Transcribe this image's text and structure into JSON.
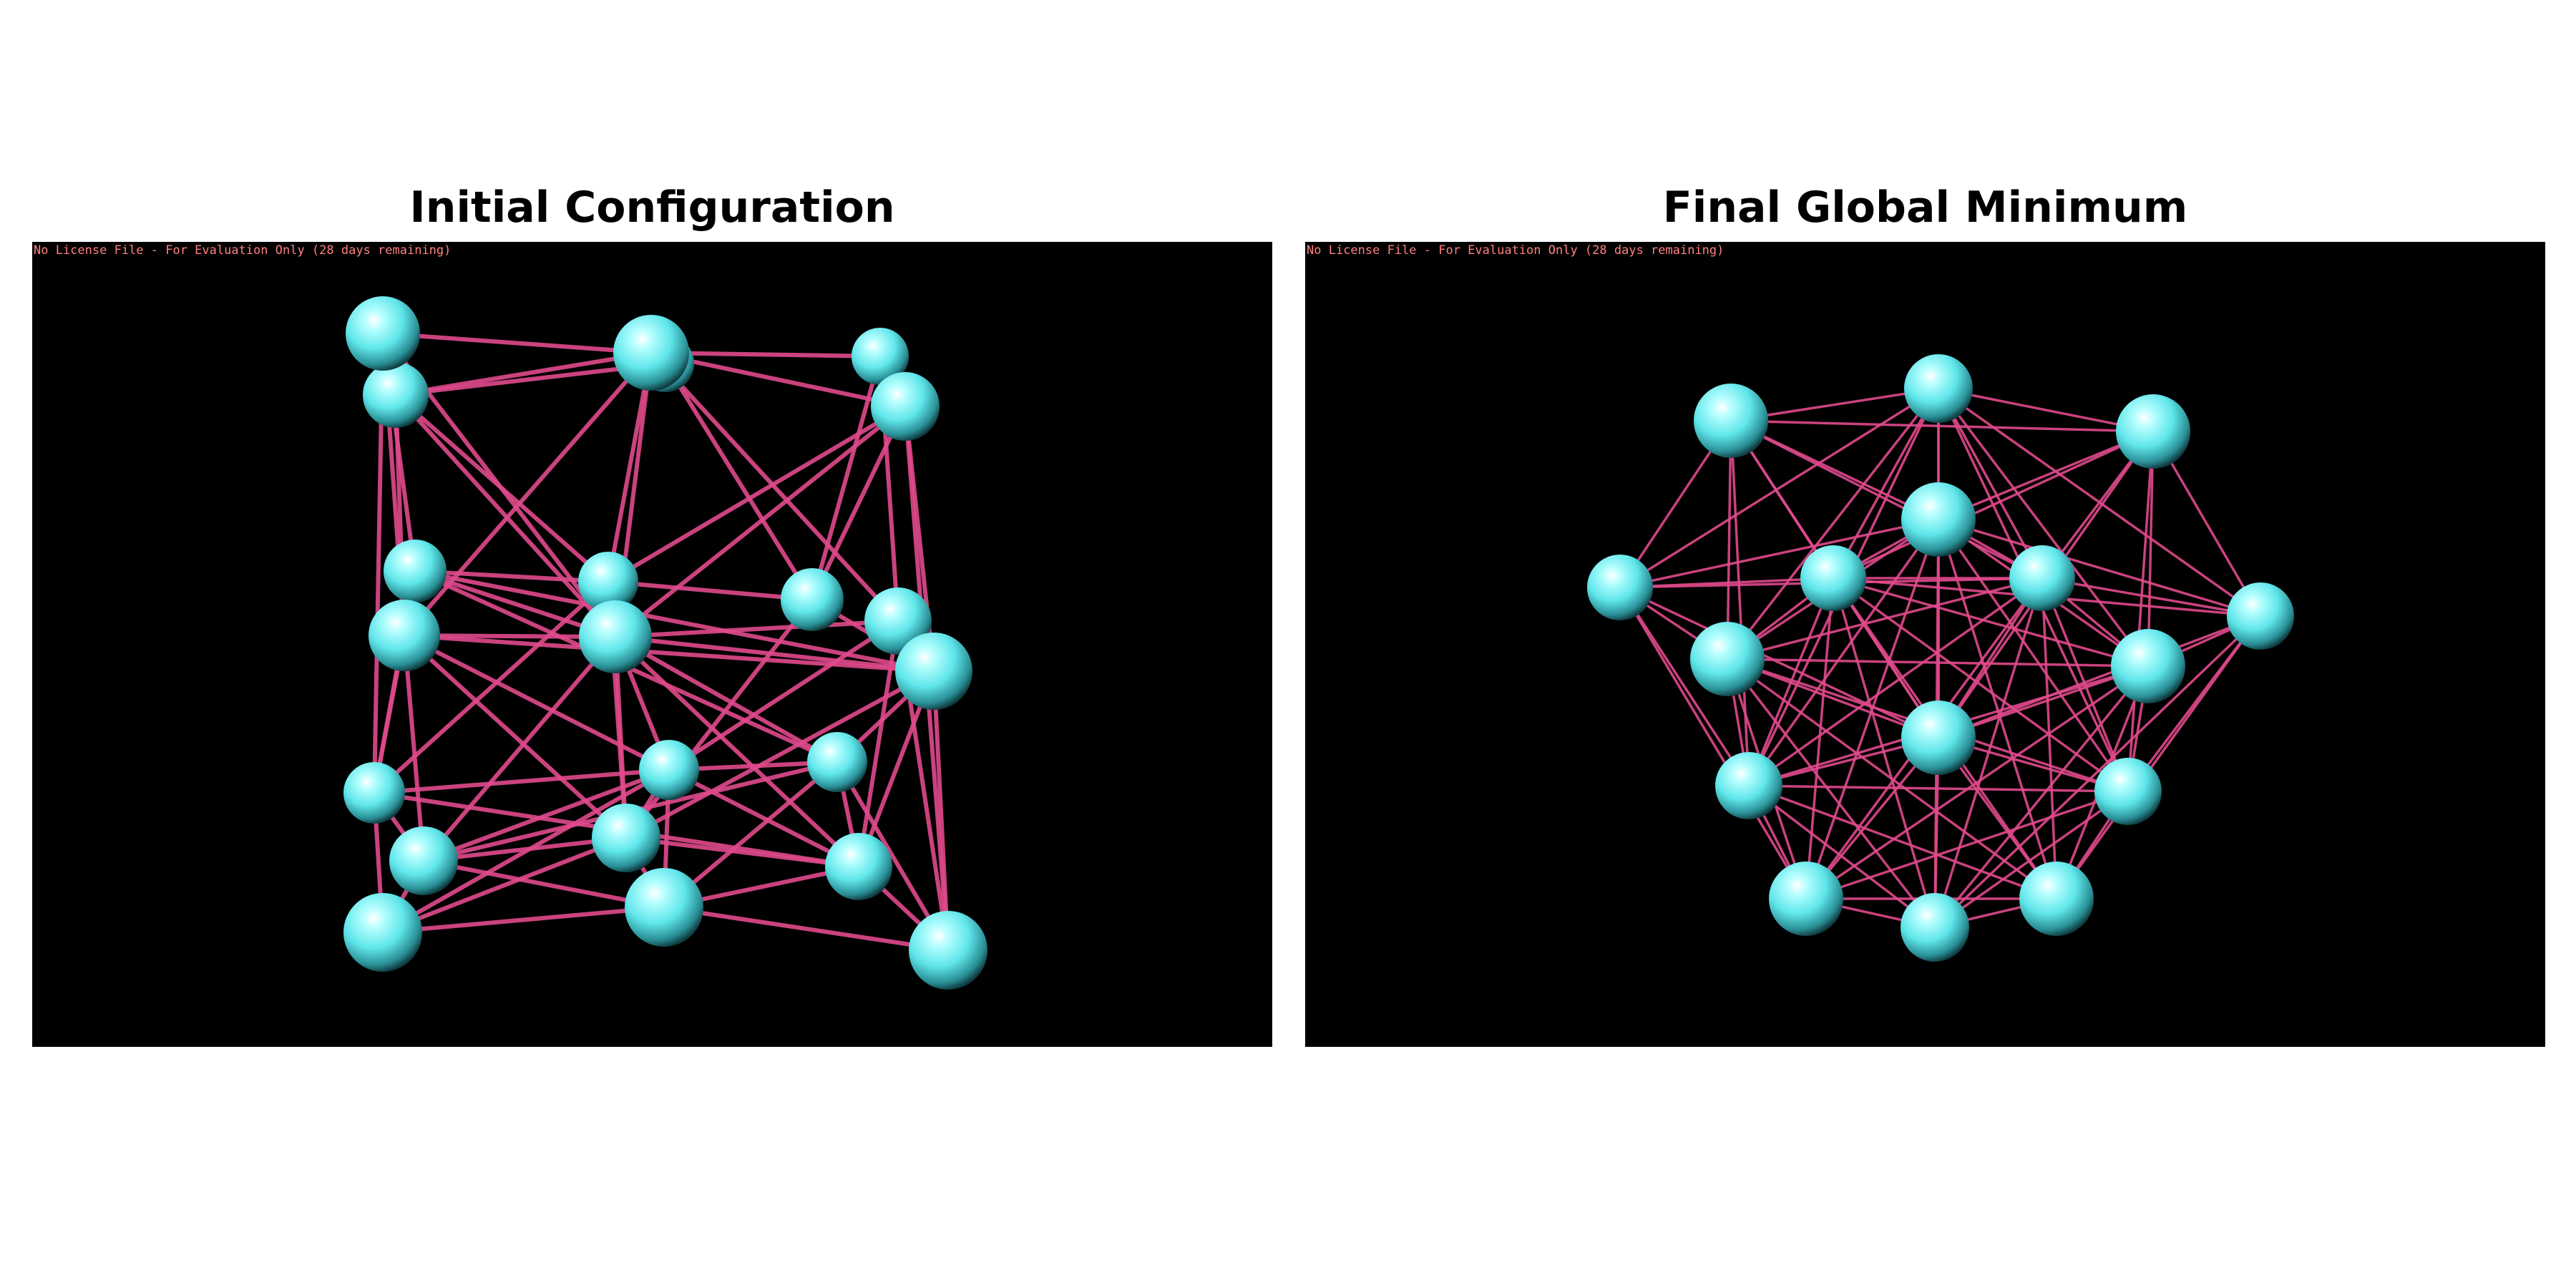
{
  "panels": [
    {
      "title": "Initial Configuration",
      "license_text": "No License File - For Evaluation Only (28 days remaining)"
    },
    {
      "title": "Final Global Minimum",
      "license_text": "No License File - For Evaluation Only (28 days remaining)"
    }
  ],
  "colors": {
    "atom": "#6ff0f0",
    "bond": "#e04a8c",
    "background": "#000000",
    "license_text": "#ff8080"
  }
}
